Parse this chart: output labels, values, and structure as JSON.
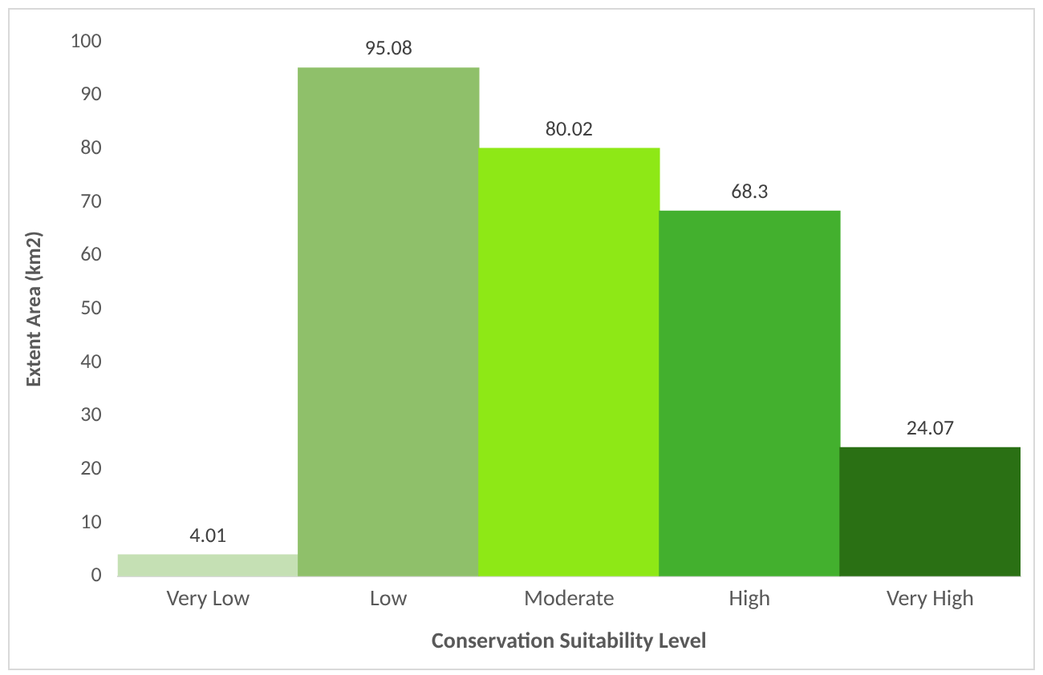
{
  "chart_data": {
    "type": "bar",
    "xlabel": "Conservation Suitability Level",
    "ylabel": "Extent Area (km2)",
    "categories": [
      "Very Low",
      "Low",
      "Moderate",
      "High",
      "Very High"
    ],
    "values": [
      4.01,
      95.08,
      80.02,
      68.3,
      24.07
    ],
    "colors": [
      "#c5e0b4",
      "#8fc06a",
      "#8ee816",
      "#43b02e",
      "#2a7014"
    ],
    "ylim": [
      0,
      100
    ],
    "yticks": [
      0,
      10,
      20,
      30,
      40,
      50,
      60,
      70,
      80,
      90,
      100
    ],
    "grid": false,
    "legend": false,
    "data_labels": true
  }
}
